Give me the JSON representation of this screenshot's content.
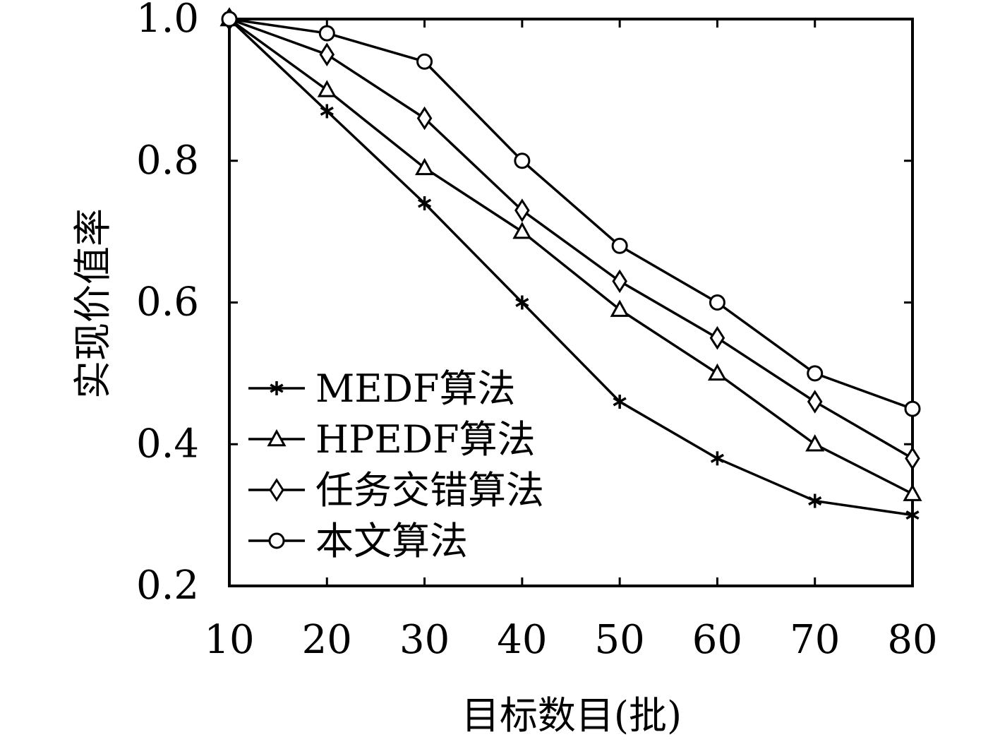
{
  "chart_data": {
    "type": "line",
    "xlabel": "目标数目(批)",
    "ylabel": "实现价值率",
    "x": [
      10,
      20,
      30,
      40,
      50,
      60,
      70,
      80
    ],
    "xticks": [
      "10",
      "20",
      "30",
      "40",
      "50",
      "60",
      "70",
      "80"
    ],
    "yticks": [
      "0.2",
      "0.4",
      "0.6",
      "0.8",
      "1.0"
    ],
    "xlim": [
      10,
      80
    ],
    "ylim": [
      0.2,
      1.0
    ],
    "grid": false,
    "legend_position": "bottom-left",
    "color": "#000000",
    "series": [
      {
        "name": "MEDF算法",
        "marker": "asterisk",
        "values": [
          1.0,
          0.87,
          0.74,
          0.6,
          0.46,
          0.38,
          0.32,
          0.3
        ]
      },
      {
        "name": "HPEDF算法",
        "marker": "triangle",
        "values": [
          1.0,
          0.9,
          0.79,
          0.7,
          0.59,
          0.5,
          0.4,
          0.33
        ]
      },
      {
        "name": "任务交错算法",
        "marker": "diamond",
        "values": [
          1.0,
          0.95,
          0.86,
          0.73,
          0.63,
          0.55,
          0.46,
          0.38
        ]
      },
      {
        "name": "本文算法",
        "marker": "circle",
        "values": [
          1.0,
          0.98,
          0.94,
          0.8,
          0.68,
          0.6,
          0.5,
          0.45
        ]
      }
    ]
  }
}
